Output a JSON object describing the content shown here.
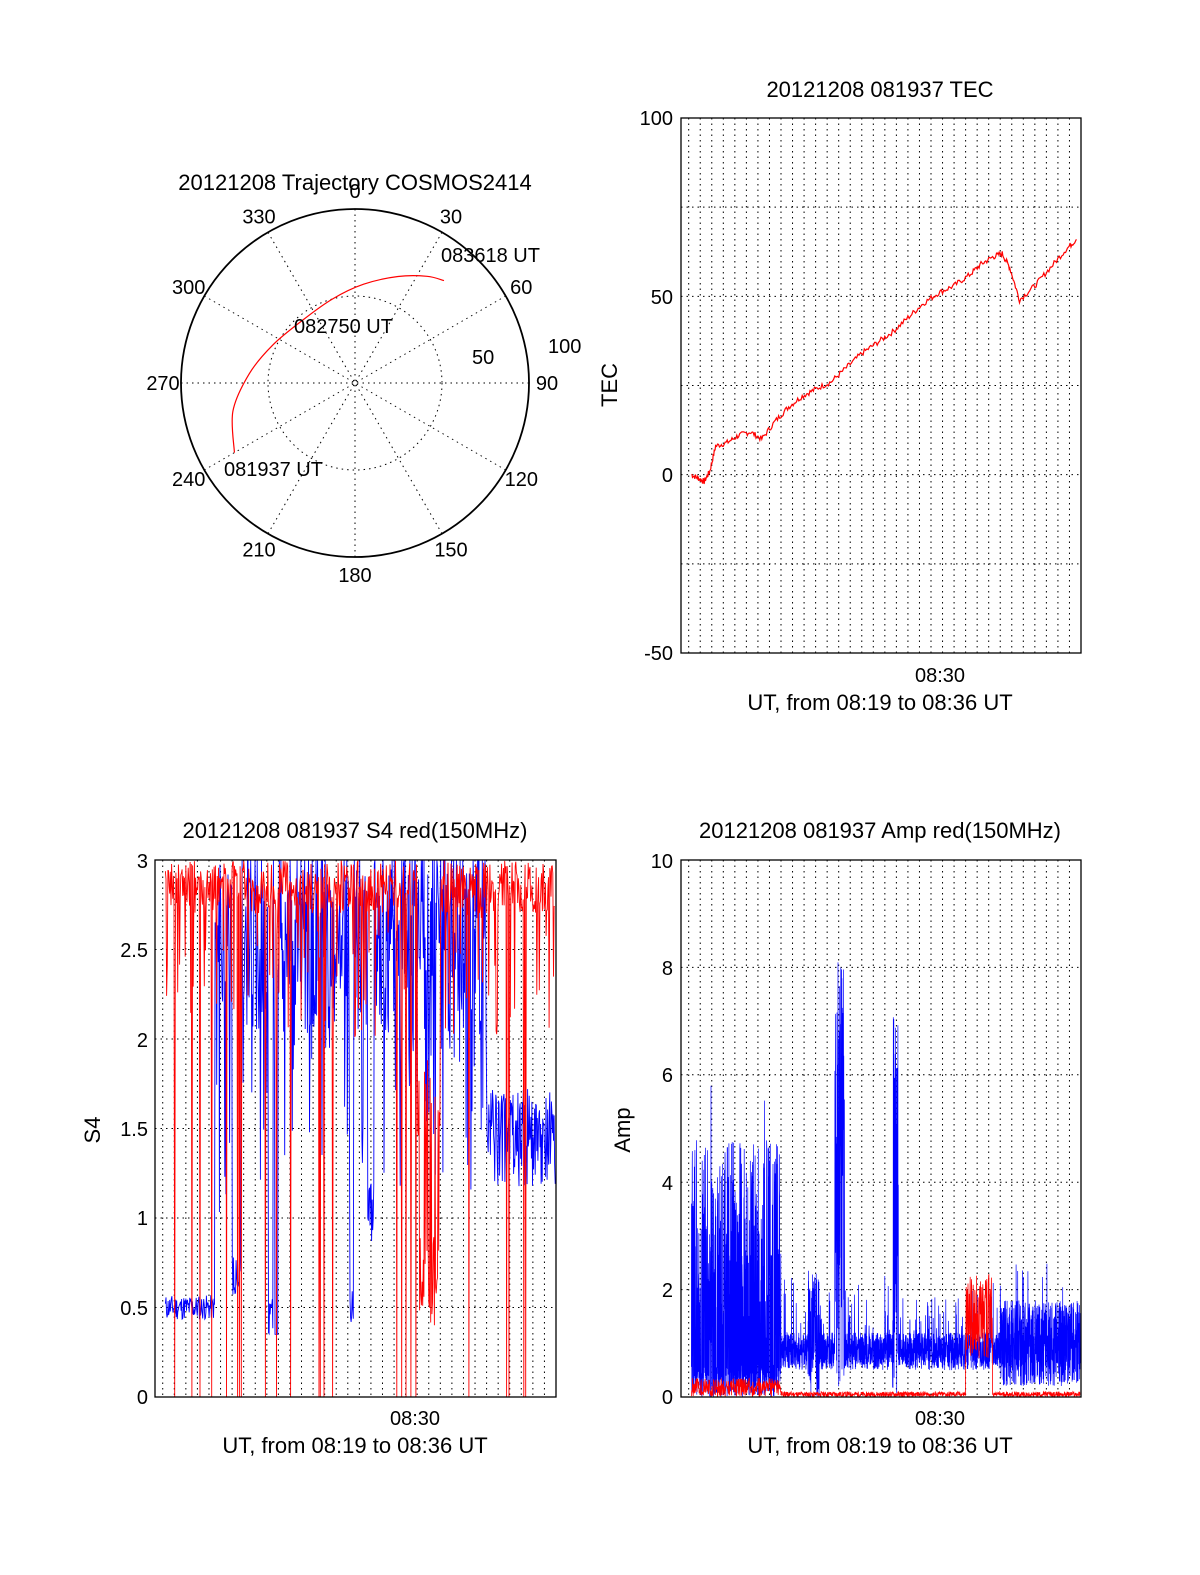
{
  "chart_data": [
    {
      "type": "polar",
      "title": "20121208 Trajectory COSMOS2414",
      "angle_ticks": [
        "0",
        "30",
        "60",
        "90",
        "120",
        "150",
        "180",
        "210",
        "240",
        "270",
        "300",
        "330"
      ],
      "radial_ticks": [
        "50",
        "100"
      ],
      "rlim": [
        0,
        100
      ],
      "series": [
        {
          "color": "#ff0000",
          "points": [
            {
              "az": 240,
              "r": 80
            },
            {
              "az": 257,
              "r": 72
            },
            {
              "az": 275,
              "r": 61
            },
            {
              "az": 295,
              "r": 52
            },
            {
              "az": 320,
              "r": 47
            },
            {
              "az": 345,
              "r": 50
            },
            {
              "az": 5,
              "r": 57
            },
            {
              "az": 22,
              "r": 66
            },
            {
              "az": 34,
              "r": 74
            },
            {
              "az": 41,
              "r": 78
            }
          ]
        }
      ],
      "annotations": [
        "083618 UT",
        "082750 UT",
        "081937 UT"
      ]
    },
    {
      "type": "line",
      "title": "20121208 081937 TEC",
      "xlabel": "UT, from 08:19 to 08:36 UT",
      "ylabel": "TEC",
      "xlim": [
        "08:19:10",
        "08:36:30"
      ],
      "ylim": [
        -50,
        100
      ],
      "yticks": [
        "100",
        "50",
        "0",
        "-50"
      ],
      "xticks": [
        "08:30"
      ],
      "color": "#ff0000",
      "x": [
        "08:19:37",
        "08:19:55",
        "08:20:10",
        "08:20:25",
        "08:20:40",
        "08:21:10",
        "08:21:40",
        "08:22:10",
        "08:22:40",
        "08:23:15",
        "08:23:50",
        "08:24:25",
        "08:25:00",
        "08:25:40",
        "08:26:20",
        "08:27:00",
        "08:27:40",
        "08:28:20",
        "08:29:00",
        "08:29:40",
        "08:30:20",
        "08:31:00",
        "08:31:40",
        "08:32:10",
        "08:32:40",
        "08:33:05",
        "08:33:25",
        "08:33:50",
        "08:34:30",
        "08:35:10",
        "08:35:50",
        "08:36:18"
      ],
      "y": [
        0,
        -1,
        -2,
        1,
        8,
        9,
        11,
        12,
        10,
        15,
        19,
        22,
        24,
        26,
        30,
        34,
        37,
        40,
        44,
        48,
        51,
        53,
        56,
        59,
        61,
        62,
        58,
        49,
        53,
        58,
        63,
        66
      ]
    },
    {
      "type": "line",
      "title": "20121208 081937 S4 red(150MHz)",
      "xlabel": "UT, from 08:19 to 08:36 UT",
      "ylabel": "S4",
      "xlim": [
        "08:19:10",
        "08:36:30"
      ],
      "ylim": [
        0,
        3
      ],
      "yticks": [
        "3",
        "2.5",
        "2",
        "1.5",
        "1",
        "0.5",
        "0"
      ],
      "xticks": [
        "08:30"
      ],
      "series": [
        {
          "color": "#0000ff",
          "description": "S4 blue: ~0.5 early, rising to saturation with deep dips near 08:23, 08:26, 08:29; ~1.5 near end"
        },
        {
          "color": "#ff0000",
          "description": "S4 red: near 3 with deep spikes to 0; dip to ~0.4 near 08:31"
        }
      ]
    },
    {
      "type": "line",
      "title": "20121208 081937 Amp red(150MHz)",
      "xlabel": "UT, from 08:19 to 08:36 UT",
      "ylabel": "Amp",
      "xlim": [
        "08:19:10",
        "08:36:30"
      ],
      "ylim": [
        0,
        10
      ],
      "yticks": [
        "10",
        "8",
        "6",
        "4",
        "2",
        "0"
      ],
      "xticks": [
        "08:30"
      ],
      "series": [
        {
          "color": "#0000ff",
          "description": "Amp blue: noisy 0–5.5 until ~08:23:30, then ~0.7 baseline with spikes 8.4 near 08:26 and 7.5 near 08:28:30"
        },
        {
          "color": "#ff0000",
          "description": "Amp red: near 0, burst to ~2.3 near 08:32"
        }
      ]
    }
  ]
}
